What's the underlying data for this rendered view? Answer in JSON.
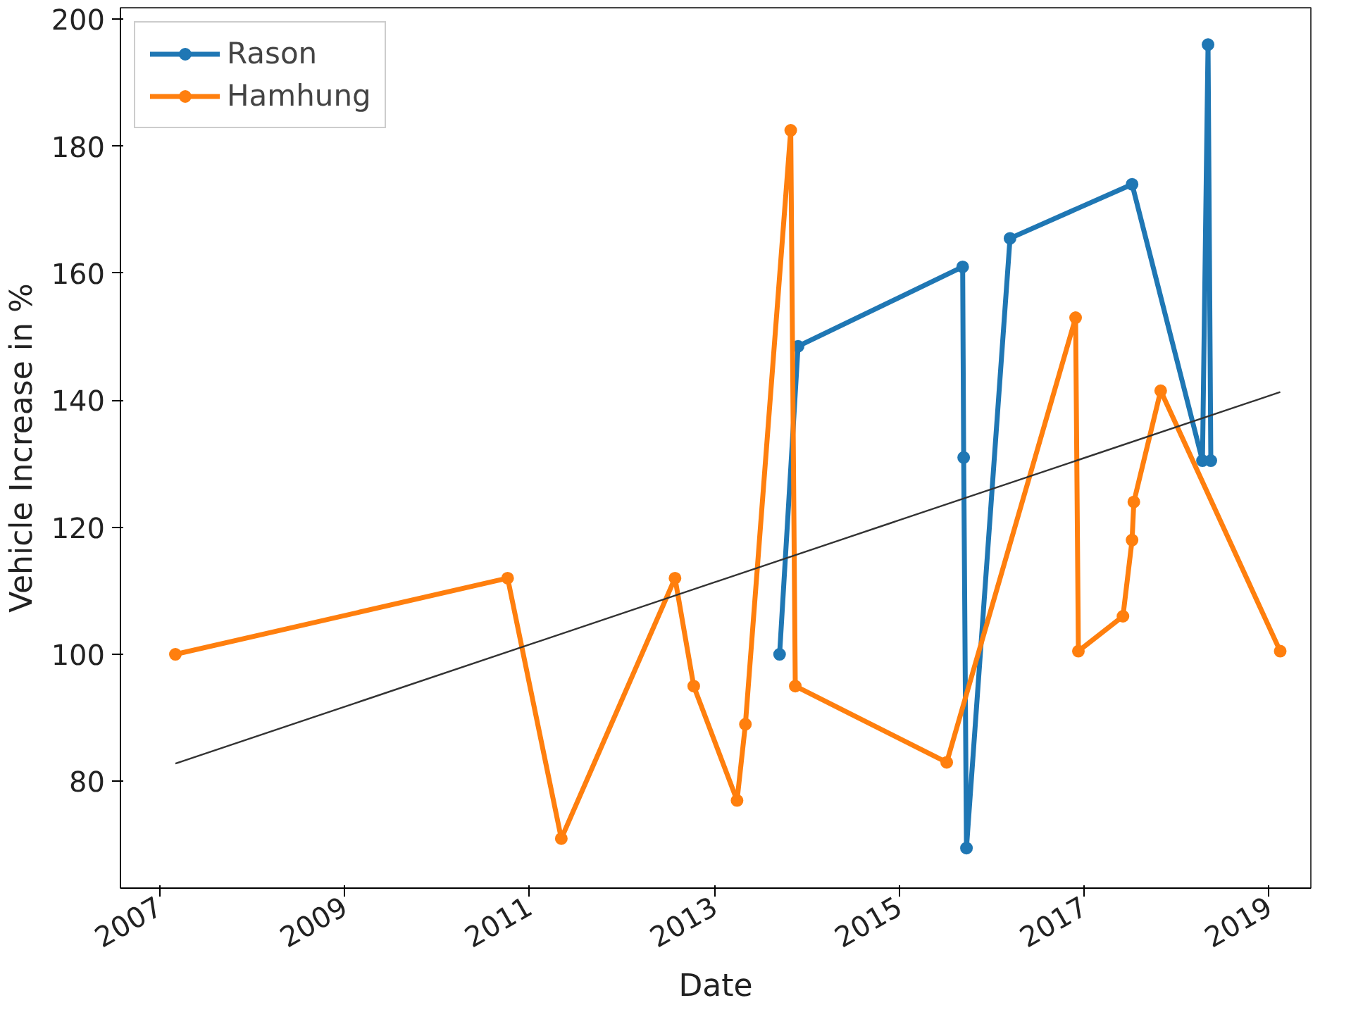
{
  "chart_data": {
    "type": "line",
    "xlabel": "Date",
    "ylabel": "Vehicle Increase in %",
    "xlim": [
      "2006-08",
      "2019-06-15"
    ],
    "ylim": [
      63.2,
      201.8
    ],
    "xticks": [
      "2007",
      "2009",
      "2011",
      "2013",
      "2015",
      "2017",
      "2019"
    ],
    "yticks": [
      80,
      100,
      120,
      140,
      160,
      180,
      200
    ],
    "grid": false,
    "legend": "top left",
    "marker": "circle",
    "line_style": "solid",
    "series": [
      {
        "name": "Rason",
        "color": "#1f77b4",
        "x": [
          "2013-09-16",
          "2013-11-28",
          "2015-09-09",
          "2015-09-13",
          "2015-09-24",
          "2016-03-14",
          "2017-07-09",
          "2018-04-13",
          "2018-05-05",
          "2018-05-16"
        ],
        "values": [
          100,
          148.5,
          161,
          131,
          69.5,
          165.5,
          174,
          130.5,
          196,
          130.5
        ]
      },
      {
        "name": "Hamhung",
        "color": "#ff7f0e",
        "x": [
          "2007-03-06",
          "2010-10-08",
          "2011-05-08",
          "2012-07-30",
          "2012-10-12",
          "2013-04-01",
          "2013-05-04",
          "2013-10-30",
          "2013-11-17",
          "2015-07-08",
          "2016-11-28",
          "2016-12-09",
          "2017-06-03",
          "2017-07-09",
          "2017-07-16",
          "2017-10-30",
          "2019-02-14"
        ],
        "values": [
          100,
          112,
          71,
          112,
          95,
          77,
          89,
          182.5,
          95,
          83,
          153,
          100.5,
          106,
          118,
          124,
          141.5,
          100.5
        ]
      },
      {
        "type": "line",
        "color": "#333333",
        "marker": "none",
        "x": [
          "2007-03-06",
          "2019-02-14"
        ],
        "values": [
          82.8,
          141.3
        ]
      }
    ]
  }
}
